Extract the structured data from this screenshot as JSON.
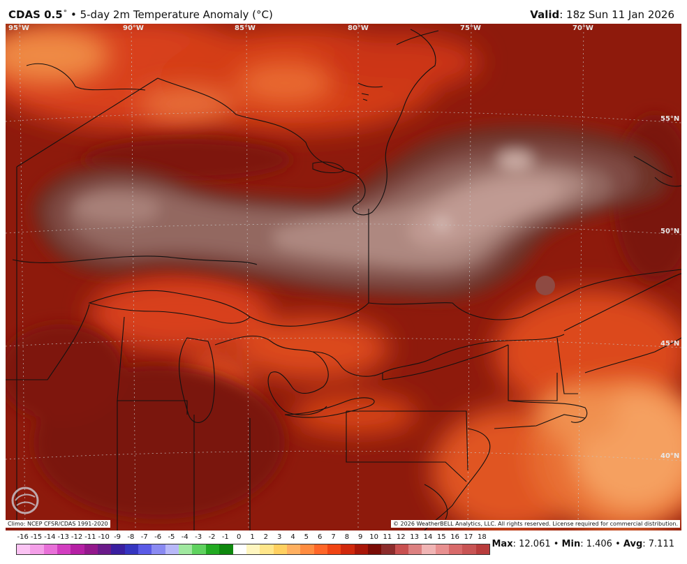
{
  "header": {
    "model": "CDAS 0.5",
    "degree": "°",
    "bullet": "•",
    "product": "5-day 2m Temperature Anomaly (°C)",
    "valid_label": "Valid",
    "valid_value": ": 18z Sun 11 Jan 2026"
  },
  "map": {
    "longitude_labels": [
      "95°W",
      "90°W",
      "85°W",
      "80°W",
      "75°W",
      "70°W"
    ],
    "latitude_labels": [
      "55°N",
      "50°N",
      "45°N",
      "40°N"
    ],
    "logo_text": "WEATHERBELL"
  },
  "footer": {
    "climo": "Climo: NCEP CFSR/CDAS 1991-2020",
    "copyright": "© 2026 WeatherBELL Analytics, LLC. All rights reserved. License required for commercial distribution."
  },
  "colorbar": {
    "ticks": [
      "-16",
      "-15",
      "-14",
      "-13",
      "-12",
      "-11",
      "-10",
      "-9",
      "-8",
      "-7",
      "-6",
      "-5",
      "-4",
      "-3",
      "-2",
      "-1",
      "0",
      "1",
      "2",
      "3",
      "4",
      "5",
      "6",
      "7",
      "8",
      "9",
      "10",
      "11",
      "12",
      "13",
      "14",
      "15",
      "16",
      "17",
      "18"
    ],
    "colors": [
      "#fbc3f3",
      "#f49fe8",
      "#e870d8",
      "#d23ec0",
      "#b520a4",
      "#93188c",
      "#6a1a8a",
      "#3a1fa0",
      "#3535c0",
      "#5a5ae6",
      "#8a8af2",
      "#b8b8f8",
      "#a0e8a0",
      "#5fd25f",
      "#22aa22",
      "#0e880e",
      "#ffffff",
      "#fff6c0",
      "#ffe68a",
      "#ffd060",
      "#ffb060",
      "#ff8c40",
      "#ff6628",
      "#f04414",
      "#d0280c",
      "#a81608",
      "#7a0c06",
      "#8c2c2c",
      "#c85050",
      "#dc8080",
      "#f0b4b4",
      "#e89090",
      "#d86a6a",
      "#c85454",
      "#b83c3c"
    ]
  },
  "stats": {
    "max_label": "Max",
    "max_value": ": 12.061",
    "min_label": "Min",
    "min_value": ": 1.406",
    "avg_label": "Avg",
    "avg_value": ": 7.111",
    "separator": " • "
  },
  "colors": {
    "base_anomaly": "#8e1a0c",
    "warm_anomaly": "#e8501e",
    "hot_anomaly": "#f7a05e",
    "cool_anomaly": "#8a5a52",
    "lightest_anomaly": "#c9a196",
    "border_line": "#111111"
  }
}
